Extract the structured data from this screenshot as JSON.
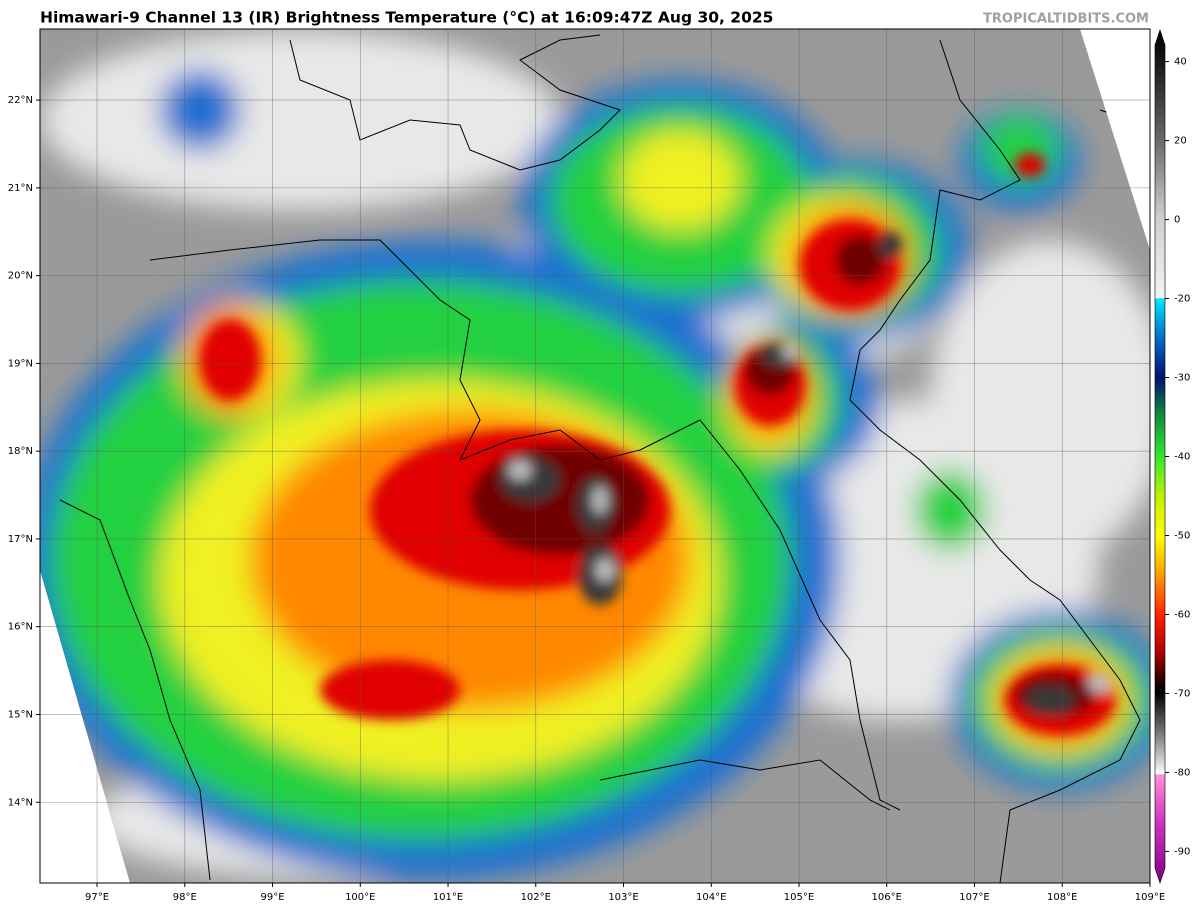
{
  "title": "Himawari-9 Channel 13 (IR) Brightness Temperature (°C) at 16:09:47Z Aug 30, 2025",
  "watermark": "TROPICALTIDBITS.COM",
  "map": {
    "xlim": [
      96.35,
      109
    ],
    "ylim": [
      13.08,
      22.81
    ],
    "xticks": [
      {
        "value": 97,
        "label": "97°E"
      },
      {
        "value": 98,
        "label": "98°E"
      },
      {
        "value": 99,
        "label": "99°E"
      },
      {
        "value": 100,
        "label": "100°E"
      },
      {
        "value": 101,
        "label": "101°E"
      },
      {
        "value": 102,
        "label": "102°E"
      },
      {
        "value": 103,
        "label": "103°E"
      },
      {
        "value": 104,
        "label": "104°E"
      },
      {
        "value": 105,
        "label": "105°E"
      },
      {
        "value": 106,
        "label": "106°E"
      },
      {
        "value": 107,
        "label": "107°E"
      },
      {
        "value": 108,
        "label": "108°E"
      },
      {
        "value": 109,
        "label": "109°E"
      }
    ],
    "yticks": [
      {
        "value": 14,
        "label": "14°N"
      },
      {
        "value": 15,
        "label": "15°N"
      },
      {
        "value": 16,
        "label": "16°N"
      },
      {
        "value": 17,
        "label": "17°N"
      },
      {
        "value": 18,
        "label": "18°N"
      },
      {
        "value": 19,
        "label": "19°N"
      },
      {
        "value": 20,
        "label": "20°N"
      },
      {
        "value": 21,
        "label": "21°N"
      },
      {
        "value": 22,
        "label": "22°N"
      }
    ]
  },
  "colorbar": {
    "lim": [
      -94,
      48
    ],
    "ticks": [
      40,
      20,
      0,
      -20,
      -30,
      -40,
      -50,
      -60,
      -70,
      -80,
      -90
    ]
  }
}
